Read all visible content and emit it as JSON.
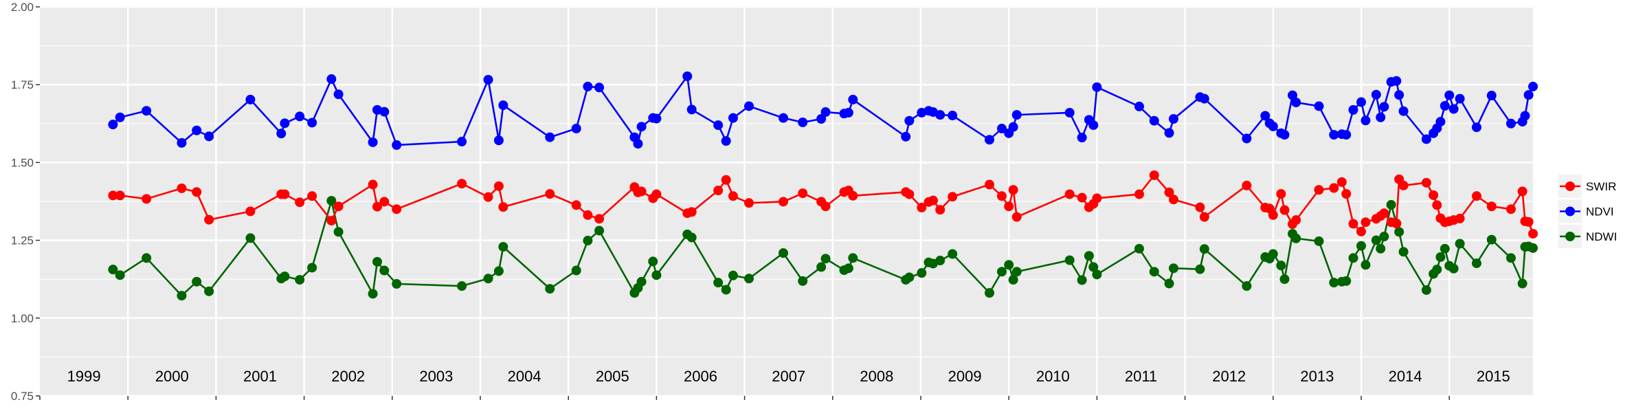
{
  "chart_data": {
    "type": "line",
    "title": "",
    "xlabel": "",
    "ylabel": "",
    "xlim": [
      1999.0,
      2015.95
    ],
    "ylim": [
      0.75,
      2.0
    ],
    "yticks": [
      "0.75",
      "1.00",
      "1.25",
      "1.50",
      "1.75",
      "2.00"
    ],
    "year_labels": [
      "1999",
      "2000",
      "2001",
      "2002",
      "2003",
      "2004",
      "2005",
      "2006",
      "2007",
      "2008",
      "2009",
      "2010",
      "2011",
      "2012",
      "2013",
      "2014",
      "2015"
    ],
    "grid": true,
    "legend_position": "right",
    "x": [
      1999.83,
      1999.91,
      2000.21,
      2000.61,
      2000.78,
      2000.92,
      2001.39,
      2001.74,
      2001.78,
      2001.95,
      2002.09,
      2002.31,
      2002.39,
      2002.78,
      2002.83,
      2002.91,
      2003.05,
      2003.79,
      2004.09,
      2004.21,
      2004.26,
      2004.79,
      2005.09,
      2005.22,
      2005.35,
      2005.75,
      2005.79,
      2005.83,
      2005.96,
      2006.0,
      2006.35,
      2006.4,
      2006.7,
      2006.79,
      2006.87,
      2007.05,
      2007.44,
      2007.66,
      2007.87,
      2007.92,
      2008.13,
      2008.18,
      2008.23,
      2008.83,
      2008.87,
      2009.01,
      2009.09,
      2009.14,
      2009.22,
      2009.36,
      2009.78,
      2009.92,
      2010.0,
      2010.05,
      2010.09,
      2010.69,
      2010.83,
      2010.91,
      2010.96,
      2011.0,
      2011.48,
      2011.65,
      2011.82,
      2011.87,
      2012.17,
      2012.22,
      2012.7,
      2012.91,
      2012.96,
      2013.0,
      2013.09,
      2013.13,
      2013.22,
      2013.26,
      2013.52,
      2013.69,
      2013.78,
      2013.83,
      2013.91,
      2014.0,
      2014.05,
      2014.17,
      2014.22,
      2014.26,
      2014.34,
      2014.4,
      2014.43,
      2014.48,
      2014.74,
      2014.82,
      2014.86,
      2014.9,
      2014.95,
      2015.0,
      2015.05,
      2015.12,
      2015.31,
      2015.48,
      2015.7,
      2015.83,
      2015.86,
      2015.9,
      2015.95
    ],
    "series": [
      {
        "name": "SWIR",
        "color": "#ff0000",
        "values": [
          1.394,
          1.394,
          1.383,
          1.417,
          1.405,
          1.316,
          1.343,
          1.398,
          1.398,
          1.372,
          1.392,
          1.313,
          1.359,
          1.429,
          1.358,
          1.374,
          1.35,
          1.432,
          1.389,
          1.424,
          1.357,
          1.399,
          1.363,
          1.331,
          1.319,
          1.421,
          1.404,
          1.407,
          1.385,
          1.398,
          1.337,
          1.341,
          1.41,
          1.444,
          1.392,
          1.37,
          1.374,
          1.401,
          1.374,
          1.359,
          1.405,
          1.41,
          1.393,
          1.405,
          1.398,
          1.355,
          1.373,
          1.378,
          1.348,
          1.39,
          1.429,
          1.392,
          1.359,
          1.412,
          1.325,
          1.398,
          1.387,
          1.356,
          1.367,
          1.385,
          1.398,
          1.459,
          1.404,
          1.381,
          1.356,
          1.325,
          1.426,
          1.355,
          1.352,
          1.331,
          1.399,
          1.347,
          1.302,
          1.315,
          1.412,
          1.418,
          1.437,
          1.399,
          1.303,
          1.278,
          1.308,
          1.319,
          1.328,
          1.337,
          1.308,
          1.304,
          1.446,
          1.426,
          1.435,
          1.395,
          1.363,
          1.321,
          1.308,
          1.311,
          1.315,
          1.32,
          1.392,
          1.359,
          1.35,
          1.407,
          1.311,
          1.309,
          1.271
        ]
      },
      {
        "name": "NDVI",
        "color": "#0000ff",
        "values": [
          1.622,
          1.645,
          1.666,
          1.563,
          1.603,
          1.584,
          1.702,
          1.593,
          1.626,
          1.648,
          1.628,
          1.768,
          1.719,
          1.565,
          1.669,
          1.663,
          1.556,
          1.567,
          1.766,
          1.571,
          1.684,
          1.581,
          1.609,
          1.744,
          1.741,
          1.581,
          1.56,
          1.615,
          1.643,
          1.641,
          1.777,
          1.67,
          1.62,
          1.569,
          1.643,
          1.681,
          1.643,
          1.629,
          1.64,
          1.662,
          1.657,
          1.66,
          1.702,
          1.583,
          1.634,
          1.66,
          1.666,
          1.662,
          1.653,
          1.651,
          1.573,
          1.609,
          1.594,
          1.614,
          1.653,
          1.66,
          1.58,
          1.637,
          1.62,
          1.742,
          1.68,
          1.634,
          1.595,
          1.64,
          1.71,
          1.705,
          1.577,
          1.65,
          1.626,
          1.616,
          1.594,
          1.589,
          1.716,
          1.693,
          1.681,
          1.589,
          1.591,
          1.589,
          1.669,
          1.694,
          1.635,
          1.718,
          1.645,
          1.679,
          1.759,
          1.762,
          1.717,
          1.665,
          1.575,
          1.594,
          1.61,
          1.631,
          1.682,
          1.716,
          1.672,
          1.705,
          1.613,
          1.715,
          1.625,
          1.631,
          1.65,
          1.717,
          1.744
        ]
      },
      {
        "name": "NDWI",
        "color": "#006400",
        "values": [
          1.156,
          1.138,
          1.193,
          1.072,
          1.117,
          1.086,
          1.257,
          1.127,
          1.134,
          1.123,
          1.162,
          1.377,
          1.277,
          1.078,
          1.181,
          1.153,
          1.11,
          1.103,
          1.127,
          1.151,
          1.229,
          1.094,
          1.153,
          1.249,
          1.281,
          1.081,
          1.097,
          1.117,
          1.182,
          1.138,
          1.269,
          1.259,
          1.114,
          1.091,
          1.137,
          1.127,
          1.209,
          1.119,
          1.164,
          1.191,
          1.154,
          1.16,
          1.193,
          1.123,
          1.131,
          1.145,
          1.179,
          1.175,
          1.185,
          1.206,
          1.081,
          1.149,
          1.171,
          1.123,
          1.149,
          1.186,
          1.122,
          1.2,
          1.164,
          1.14,
          1.223,
          1.149,
          1.111,
          1.16,
          1.157,
          1.222,
          1.103,
          1.196,
          1.191,
          1.206,
          1.169,
          1.125,
          1.271,
          1.256,
          1.247,
          1.114,
          1.117,
          1.119,
          1.193,
          1.232,
          1.171,
          1.25,
          1.223,
          1.262,
          1.364,
          1.304,
          1.277,
          1.213,
          1.09,
          1.142,
          1.156,
          1.196,
          1.223,
          1.168,
          1.159,
          1.239,
          1.176,
          1.252,
          1.193,
          1.111,
          1.229,
          1.23,
          1.225
        ]
      }
    ],
    "legend_order": [
      "SWIR",
      "NDVI",
      "NDWI"
    ]
  },
  "colors": {
    "panel": "#ebebeb",
    "grid": "#ffffff",
    "axis_text": "#4d4d4d",
    "legend_key": "#f2f2f2"
  }
}
